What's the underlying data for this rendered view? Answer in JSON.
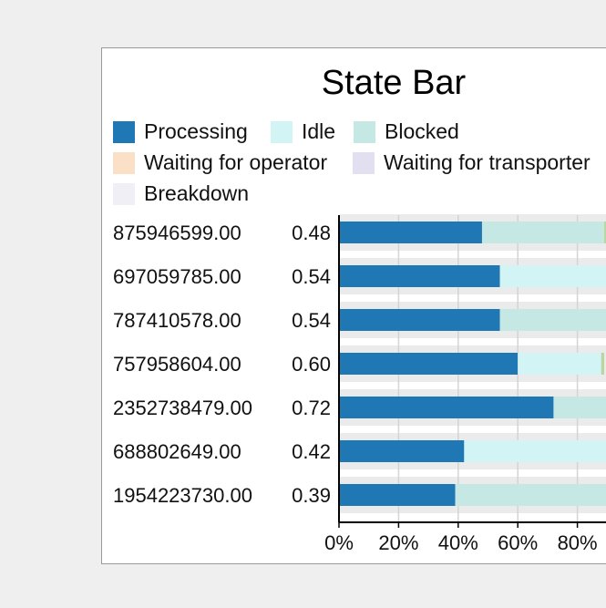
{
  "chart_data": {
    "type": "bar",
    "title": "State Bar",
    "stacked": true,
    "orientation": "horizontal",
    "xlabel": "",
    "ylabel": "",
    "xlim": [
      0,
      1
    ],
    "x_ticks": [
      "0%",
      "20%",
      "40%",
      "60%",
      "80%"
    ],
    "legend_position": "top",
    "grid": true,
    "categories": [
      "875946599.00",
      "697059785.00",
      "787410578.00",
      "757958604.00",
      "2352738479.00",
      "688802649.00",
      "1954223730.00"
    ],
    "row_values": [
      "0.48",
      "0.54",
      "0.54",
      "0.60",
      "0.72",
      "0.42",
      "0.39"
    ],
    "series": [
      {
        "name": "Processing",
        "color": "#1f77b4",
        "values": [
          0.48,
          0.54,
          0.54,
          0.6,
          0.72,
          0.42,
          0.39
        ]
      },
      {
        "name": "Idle",
        "color": "#d2f4f4",
        "values": [
          0.0,
          0.46,
          0.0,
          0.28,
          0.0,
          0.58,
          0.0
        ]
      },
      {
        "name": "Blocked",
        "color": "#c6e8e5",
        "values": [
          0.41,
          0.0,
          0.46,
          0.0,
          0.28,
          0.0,
          0.61
        ]
      },
      {
        "name": "Waiting for operator",
        "color": "#fbe0c8",
        "values": [
          0,
          0,
          0,
          0,
          0,
          0,
          0
        ]
      },
      {
        "name": "Waiting for transporter",
        "color": "#e2e0f0",
        "values": [
          0,
          0,
          0,
          0,
          0,
          0,
          0
        ]
      },
      {
        "name": "Breakdown",
        "color": "#f1eff6",
        "values": [
          0,
          0,
          0,
          0,
          0,
          0,
          0
        ]
      }
    ],
    "extra_segment": {
      "color": "#b8d8a0",
      "values": [
        0.01,
        0.0,
        0.0,
        0.01,
        0.0,
        0.0,
        0.0
      ]
    }
  }
}
